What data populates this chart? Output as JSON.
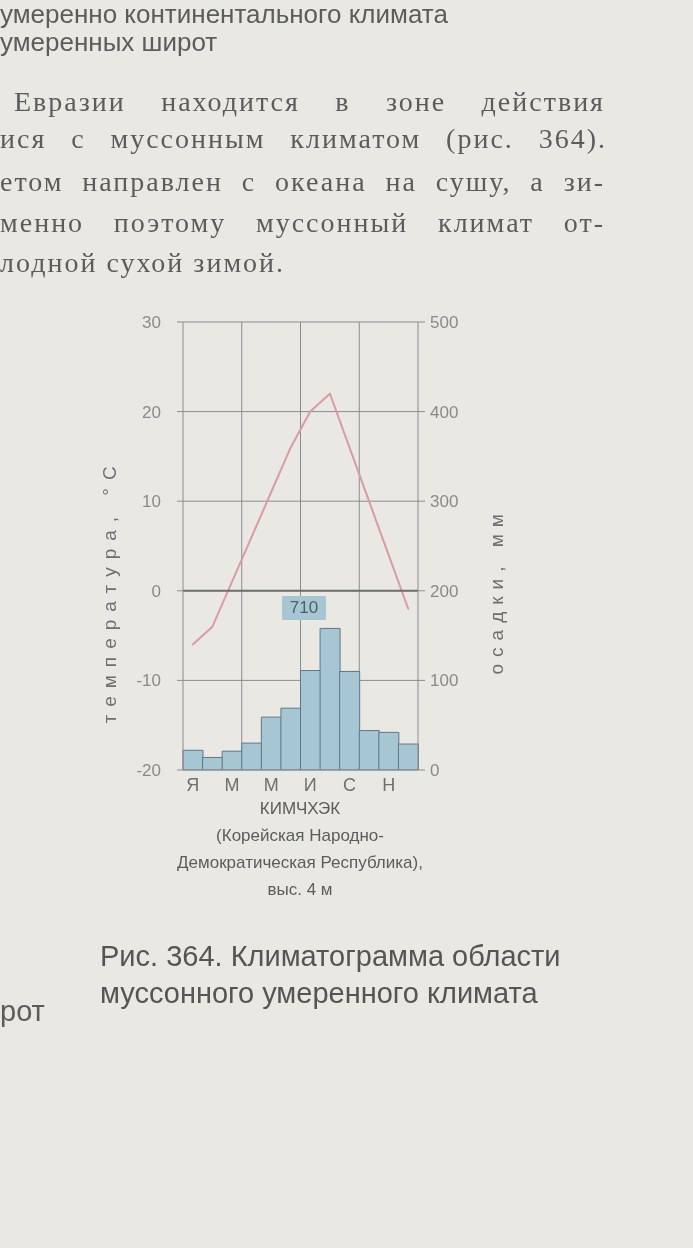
{
  "chart_data": {
    "type": "bar",
    "title": "Рис. 364. Климатограмма области муссонного умеренного климата",
    "subtitle": "КИМЧХЭК\n(Корейская Народно-Демократическая Республика),\nвыс. 4 м",
    "ylabel": "температура, °С",
    "y2label": "осадки, мм",
    "categories": [
      "Я",
      null,
      "М",
      null,
      "М",
      null,
      "И",
      null,
      "С",
      null,
      "Н",
      null
    ],
    "series": [
      {
        "type": "bar",
        "axis": "y2",
        "color": "#a6c6d4",
        "values": [
          22,
          14,
          21,
          30,
          59,
          69,
          111,
          158,
          110,
          44,
          42,
          29
        ]
      },
      {
        "type": "line",
        "color": "#d99ba5",
        "values": [
          -6,
          -4,
          1,
          6,
          11,
          16,
          20,
          22,
          16,
          10,
          4,
          -2
        ]
      }
    ],
    "ylim": [
      -20,
      30
    ],
    "yticks": [
      -20,
      -10,
      0,
      10,
      20,
      30
    ],
    "y2lim": [
      0,
      500
    ],
    "y2ticks": [
      0,
      100,
      200,
      300,
      400,
      500
    ],
    "grid": true,
    "marker": "none",
    "ref_lines": [
      {
        "axis": "y",
        "value": 0,
        "color": "#707070"
      }
    ],
    "annotations": [
      "умеренно континентального климата",
      "умеренных широт",
      "Евразии находится в зоне действия",
      "ися с муссонным климатом (рис. 364).",
      "етом направлен с океана на сушу, а зи-",
      "менно поэтому муссонный климат от-",
      "лодной сухой зимой.",
      "710",
      "рот"
    ]
  }
}
